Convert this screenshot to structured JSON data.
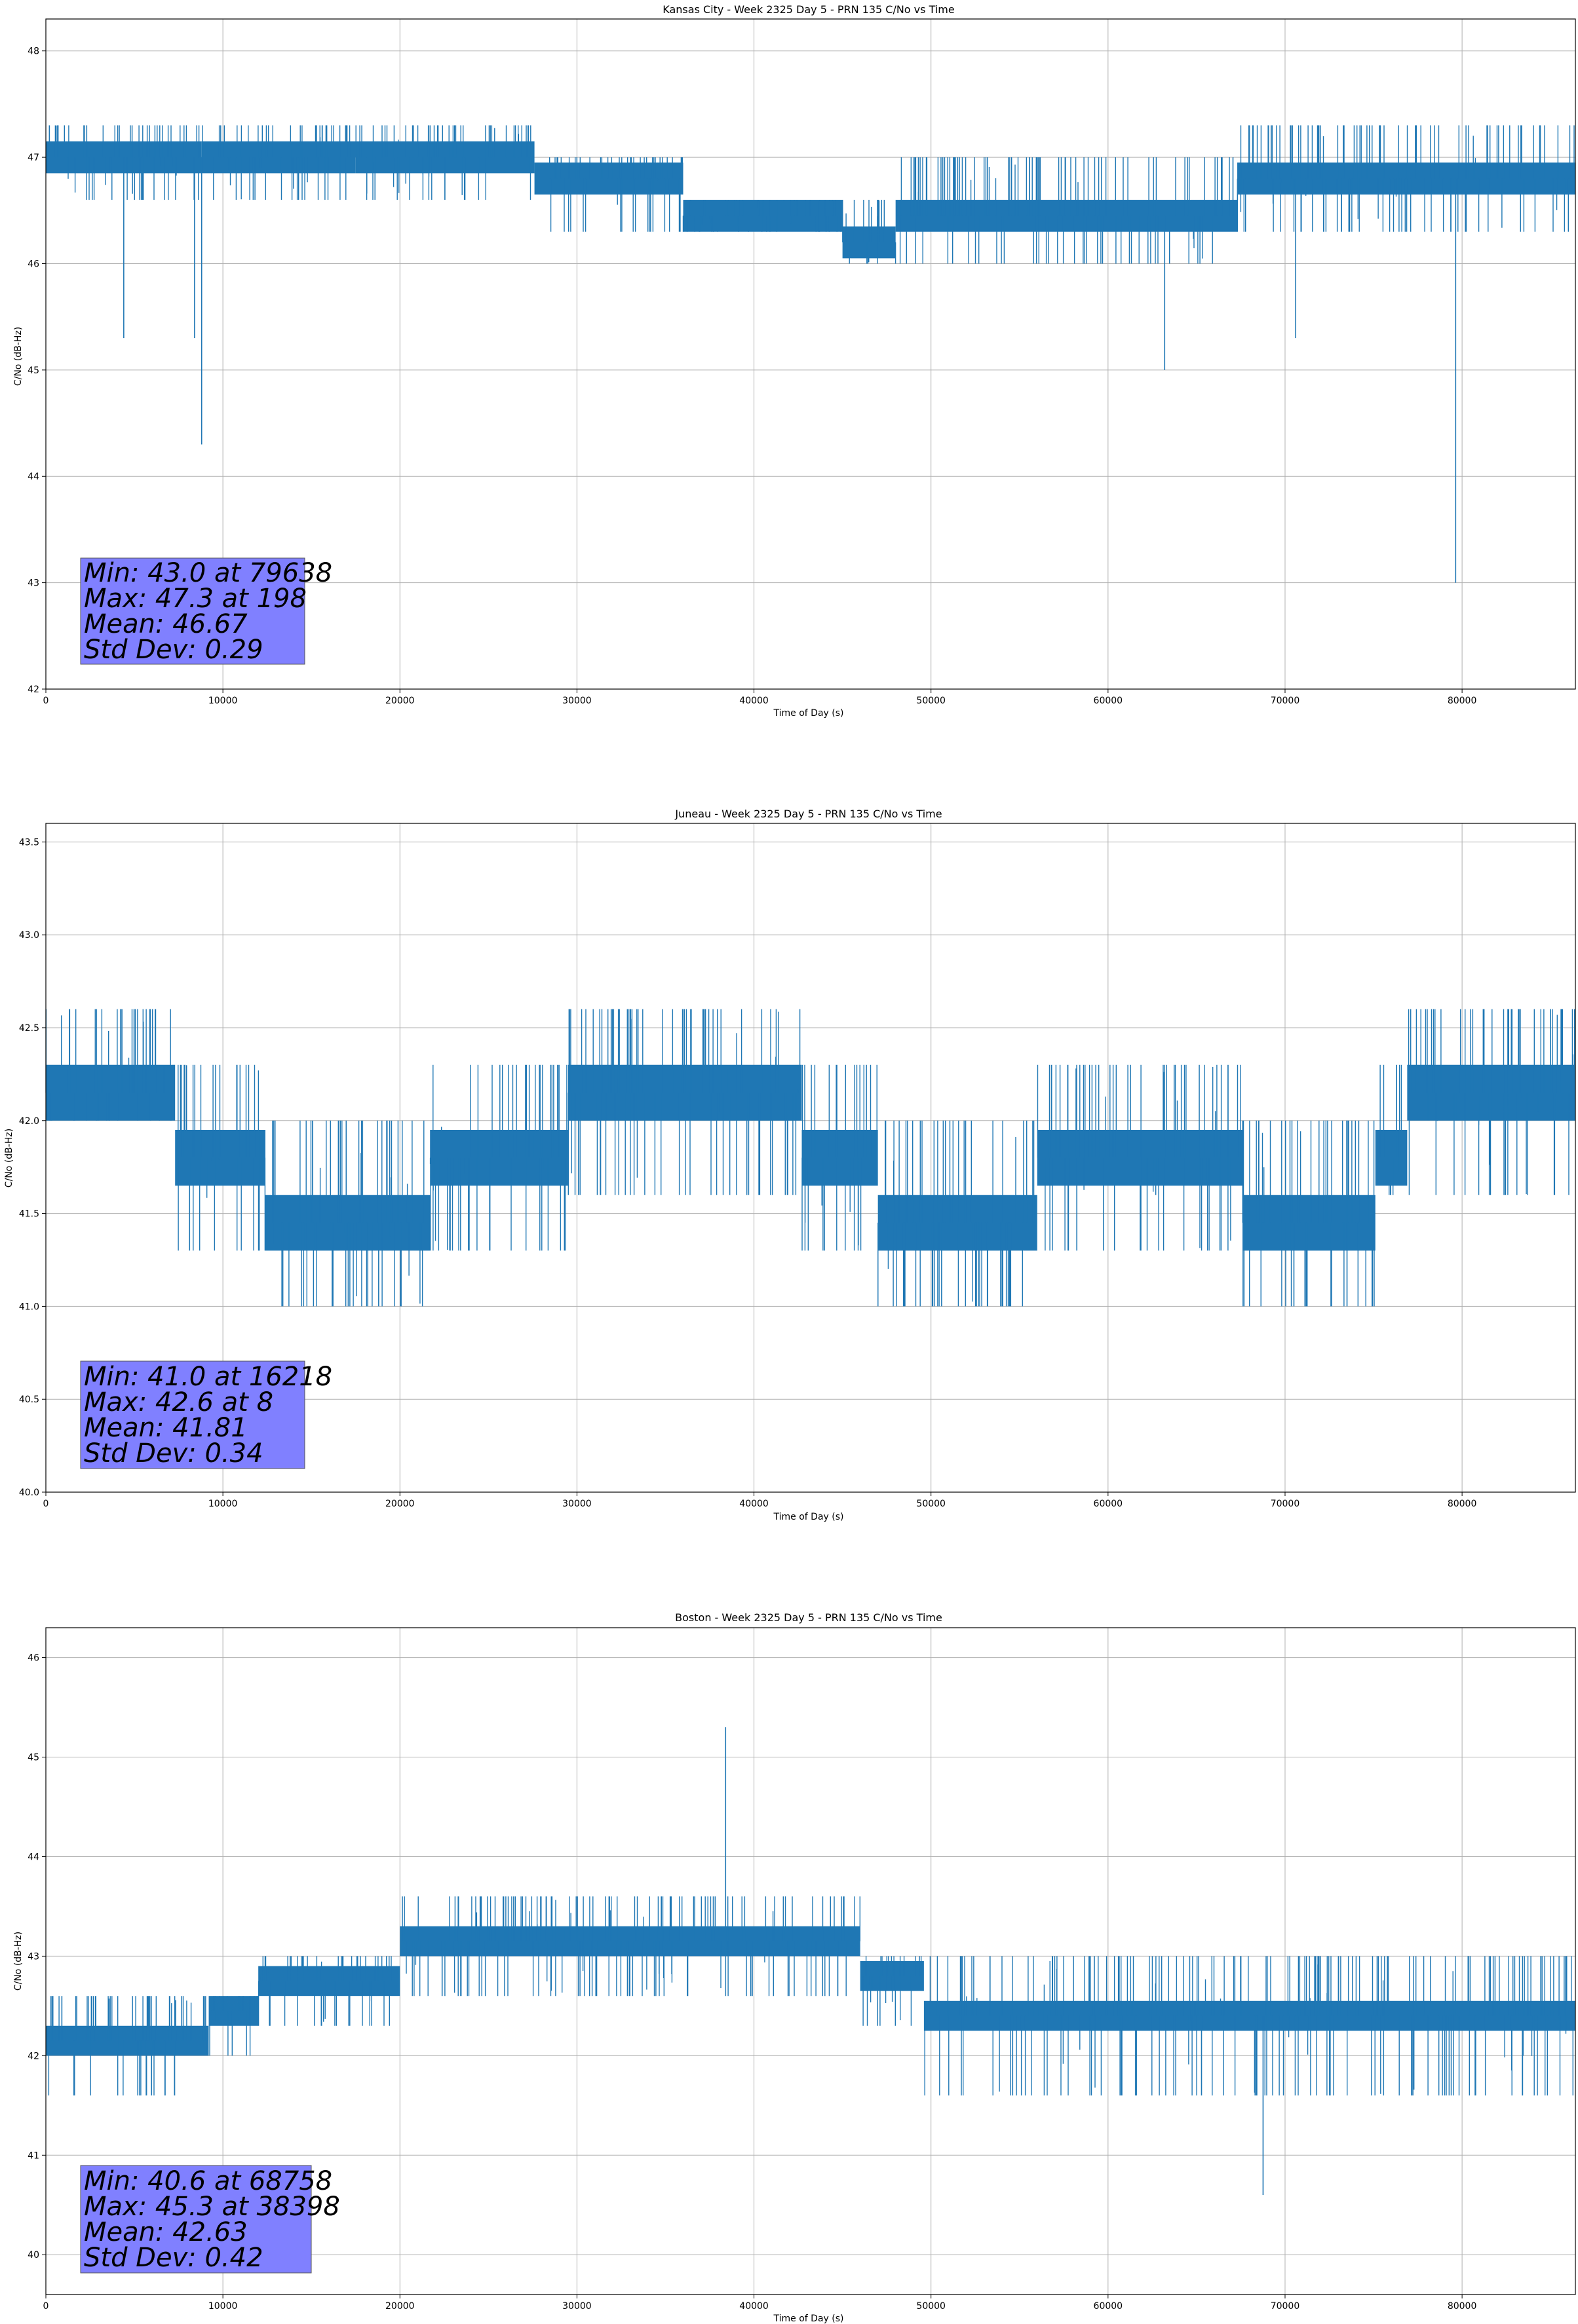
{
  "figure": {
    "title": "PRN 135 C/No vs Time",
    "series_color": "#1f77b4",
    "stats_box_color": "#8080ff",
    "grid_color": "#b0b0b0"
  },
  "chart_data": [
    {
      "type": "line",
      "title": "Kansas City - Week 2325 Day 5 - PRN 135 C/No vs Time",
      "xlabel": "Time of Day (s)",
      "ylabel": "C/No (dB-Hz)",
      "xlim": [
        0,
        86400
      ],
      "ylim": [
        42,
        48.3
      ],
      "grid": true,
      "x_ticks": [
        0,
        10000,
        20000,
        30000,
        40000,
        50000,
        60000,
        70000,
        80000
      ],
      "y_ticks": [
        42,
        43,
        44,
        45,
        46,
        47,
        48
      ],
      "y_tick_labels": [
        "42",
        "43",
        "44",
        "45",
        "46",
        "47",
        "48"
      ],
      "stats": [
        "Min: 43.0 at 79638",
        "Max: 47.3 at 198",
        "Mean: 46.67",
        "Std Dev: 0.29"
      ],
      "series": [
        {
          "bands": [
            {
              "x": [
                0,
                8800
              ],
              "base": 47.0,
              "low": 46.6,
              "high": 47.3
            },
            {
              "x": [
                8800,
                17500
              ],
              "base": 47.0,
              "low": 46.6,
              "high": 47.3
            },
            {
              "x": [
                17500,
                27600
              ],
              "base": 47.0,
              "low": 46.6,
              "high": 47.3
            },
            {
              "x": [
                27600,
                36000
              ],
              "base": 46.8,
              "low": 46.3,
              "high": 47.0
            },
            {
              "x": [
                36000,
                45000
              ],
              "base": 46.45,
              "low": 46.3,
              "high": 46.6
            },
            {
              "x": [
                45000,
                48000
              ],
              "base": 46.2,
              "low": 46.0,
              "high": 46.6
            },
            {
              "x": [
                48000,
                67300
              ],
              "base": 46.45,
              "low": 46.0,
              "high": 47.0
            },
            {
              "x": [
                67300,
                86400
              ],
              "base": 46.8,
              "low": 46.3,
              "high": 47.3
            }
          ],
          "dips": [
            [
              4400,
              45.3
            ],
            [
              8400,
              45.3
            ],
            [
              8800,
              44.3
            ],
            [
              63200,
              45.0
            ],
            [
              70600,
              45.3
            ],
            [
              79638,
              43.0
            ]
          ],
          "spikes": [
            [
              198,
              47.3
            ],
            [
              51600,
              47.0
            ]
          ]
        }
      ]
    },
    {
      "type": "line",
      "title": "Juneau - Week 2325 Day 5 - PRN 135 C/No vs Time",
      "xlabel": "Time of Day (s)",
      "ylabel": "C/No (dB-Hz)",
      "xlim": [
        0,
        86400
      ],
      "ylim": [
        40,
        43.6
      ],
      "grid": true,
      "x_ticks": [
        0,
        10000,
        20000,
        30000,
        40000,
        50000,
        60000,
        70000,
        80000
      ],
      "y_ticks": [
        40.0,
        40.5,
        41.0,
        41.5,
        42.0,
        42.5,
        43.0,
        43.5
      ],
      "y_tick_labels": [
        "40.0",
        "40.5",
        "41.0",
        "41.5",
        "42.0",
        "42.5",
        "43.0",
        "43.5"
      ],
      "stats": [
        "Min: 41.0 at 16218",
        "Max: 42.6 at 8",
        "Mean: 41.81",
        "Std Dev: 0.34"
      ],
      "series": [
        {
          "bands": [
            {
              "x": [
                0,
                7300
              ],
              "base": 42.15,
              "low": 42.0,
              "high": 42.6
            },
            {
              "x": [
                7300,
                12400
              ],
              "base": 41.8,
              "low": 41.3,
              "high": 42.3
            },
            {
              "x": [
                12400,
                21700
              ],
              "base": 41.45,
              "low": 41.0,
              "high": 42.0
            },
            {
              "x": [
                21700,
                29500
              ],
              "base": 41.8,
              "low": 41.3,
              "high": 42.3
            },
            {
              "x": [
                29500,
                42700
              ],
              "base": 42.15,
              "low": 41.6,
              "high": 42.6
            },
            {
              "x": [
                42700,
                47000
              ],
              "base": 41.8,
              "low": 41.3,
              "high": 42.3
            },
            {
              "x": [
                47000,
                56000
              ],
              "base": 41.45,
              "low": 41.0,
              "high": 42.0
            },
            {
              "x": [
                56000,
                67600
              ],
              "base": 41.8,
              "low": 41.3,
              "high": 42.3
            },
            {
              "x": [
                67600,
                75100
              ],
              "base": 41.45,
              "low": 41.0,
              "high": 42.0
            },
            {
              "x": [
                75100,
                76900
              ],
              "base": 41.8,
              "low": 41.6,
              "high": 42.3
            },
            {
              "x": [
                76900,
                86400
              ],
              "base": 42.15,
              "low": 41.6,
              "high": 42.6
            }
          ],
          "dips": [
            [
              16218,
              41.0
            ],
            [
              18800,
              41.0
            ],
            [
              50600,
              41.0
            ],
            [
              54500,
              41.0
            ],
            [
              70500,
              41.0
            ],
            [
              73500,
              41.0
            ]
          ],
          "spikes": [
            [
              8,
              42.6
            ],
            [
              32000,
              42.6
            ],
            [
              85000,
              42.6
            ]
          ]
        }
      ]
    },
    {
      "type": "line",
      "title": "Boston - Week 2325 Day 5 - PRN 135 C/No vs Time",
      "xlabel": "Time of Day (s)",
      "ylabel": "C/No (dB-Hz)",
      "xlim": [
        0,
        86400
      ],
      "ylim": [
        39.6,
        46.3
      ],
      "grid": true,
      "x_ticks": [
        0,
        10000,
        20000,
        30000,
        40000,
        50000,
        60000,
        70000,
        80000
      ],
      "y_ticks": [
        40,
        41,
        42,
        43,
        44,
        45,
        46
      ],
      "y_tick_labels": [
        "40",
        "41",
        "42",
        "43",
        "44",
        "45",
        "46"
      ],
      "stats": [
        "Min: 40.6 at 68758",
        "Max: 45.3 at 38398",
        "Mean: 42.63",
        "Std Dev: 0.42"
      ],
      "series": [
        {
          "bands": [
            {
              "x": [
                0,
                9200
              ],
              "base": 42.15,
              "low": 41.6,
              "high": 42.6
            },
            {
              "x": [
                9200,
                12000
              ],
              "base": 42.45,
              "low": 42.0,
              "high": 42.6
            },
            {
              "x": [
                12000,
                20000
              ],
              "base": 42.75,
              "low": 42.3,
              "high": 43.0
            },
            {
              "x": [
                20000,
                46000
              ],
              "base": 43.15,
              "low": 42.6,
              "high": 43.6
            },
            {
              "x": [
                46000,
                49600
              ],
              "base": 42.8,
              "low": 42.3,
              "high": 43.0
            },
            {
              "x": [
                49600,
                86400
              ],
              "base": 42.4,
              "low": 41.6,
              "high": 43.0
            }
          ],
          "dips": [
            [
              68758,
              40.6
            ]
          ],
          "spikes": [
            [
              38398,
              45.3
            ]
          ]
        }
      ]
    }
  ]
}
